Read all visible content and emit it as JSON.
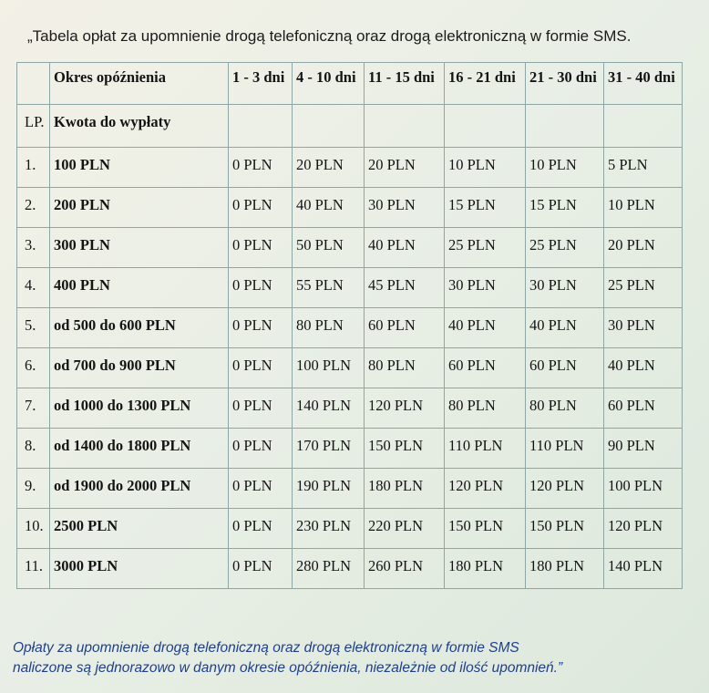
{
  "title": "„Tabela opłat za upomnienie drogą telefoniczną oraz drogą elektroniczną w formie SMS.",
  "table": {
    "header": {
      "period_label": "Okres opóźnienia",
      "periods": [
        "1 - 3 dni",
        "4 - 10 dni",
        "11 - 15 dni",
        "16 - 21 dni",
        "21 - 30 dni",
        "31 - 40 dni"
      ]
    },
    "subheader": {
      "lp": "LP.",
      "amount_label": "Kwota do wypłaty"
    },
    "rows": [
      {
        "lp": "1.",
        "amount": "100 PLN",
        "fees": [
          "0 PLN",
          "20 PLN",
          "20 PLN",
          "10 PLN",
          "10 PLN",
          "5 PLN"
        ]
      },
      {
        "lp": "2.",
        "amount": "200 PLN",
        "fees": [
          "0 PLN",
          "40 PLN",
          "30 PLN",
          "15 PLN",
          "15 PLN",
          "10 PLN"
        ]
      },
      {
        "lp": "3.",
        "amount": "300 PLN",
        "fees": [
          "0 PLN",
          "50 PLN",
          "40 PLN",
          "25 PLN",
          "25 PLN",
          "20 PLN"
        ]
      },
      {
        "lp": "4.",
        "amount": "400 PLN",
        "fees": [
          "0 PLN",
          "55 PLN",
          "45 PLN",
          "30 PLN",
          "30 PLN",
          "25 PLN"
        ]
      },
      {
        "lp": "5.",
        "amount": "od 500 do 600 PLN",
        "fees": [
          "0 PLN",
          "80 PLN",
          "60 PLN",
          "40 PLN",
          "40 PLN",
          "30 PLN"
        ]
      },
      {
        "lp": "6.",
        "amount": "od 700 do 900 PLN",
        "fees": [
          "0 PLN",
          "100 PLN",
          "80 PLN",
          "60 PLN",
          "60 PLN",
          "40 PLN"
        ]
      },
      {
        "lp": "7.",
        "amount": "od 1000 do 1300 PLN",
        "fees": [
          "0 PLN",
          "140 PLN",
          "120 PLN",
          "80 PLN",
          "80 PLN",
          "60 PLN"
        ]
      },
      {
        "lp": "8.",
        "amount": "od 1400 do 1800 PLN",
        "fees": [
          "0 PLN",
          "170 PLN",
          "150 PLN",
          "110 PLN",
          "110 PLN",
          "90 PLN"
        ]
      },
      {
        "lp": "9.",
        "amount": "od 1900 do 2000 PLN",
        "fees": [
          "0 PLN",
          "190 PLN",
          "180 PLN",
          "120 PLN",
          "120 PLN",
          "100 PLN"
        ]
      },
      {
        "lp": "10.",
        "amount": "2500 PLN",
        "fees": [
          "0 PLN",
          "230 PLN",
          "220 PLN",
          "150 PLN",
          "150 PLN",
          "120 PLN"
        ]
      },
      {
        "lp": "11.",
        "amount": "3000 PLN",
        "fees": [
          "0 PLN",
          "280 PLN",
          "260 PLN",
          "180 PLN",
          "180 PLN",
          "140 PLN"
        ]
      }
    ]
  },
  "footer": {
    "line1": "Opłaty za upomnienie drogą telefoniczną oraz drogą elektroniczną w formie SMS",
    "line2": "naliczone są jednorazowo w danym okresie opóźnienia, niezależnie od ilość upomnień.”"
  }
}
